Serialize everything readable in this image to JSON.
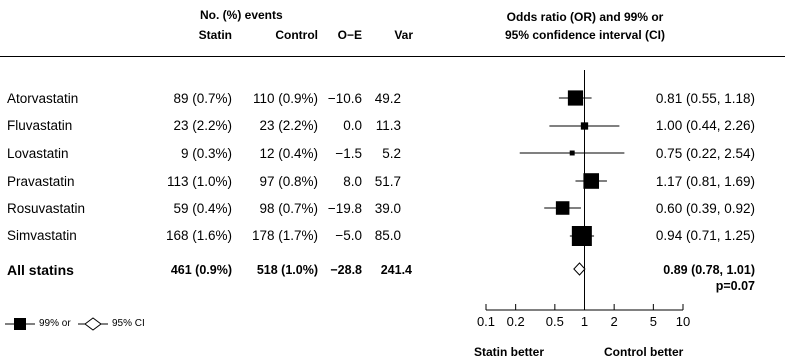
{
  "header": {
    "events_group": "No. (%) events",
    "col_statin": "Statin",
    "col_control": "Control",
    "col_oe": "O−E",
    "col_var": "Var",
    "or_title_line1": "Odds ratio (OR) and 99% or",
    "or_title_line2": "95% confidence interval (CI)"
  },
  "rows": [
    {
      "name": "Atorvastatin",
      "statin": "89 (0.7%)",
      "control": "110 (0.9%)",
      "oe": "−10.6",
      "var": "49.2",
      "ci_text": "0.81 (0.55, 1.18)"
    },
    {
      "name": "Fluvastatin",
      "statin": "23 (2.2%)",
      "control": "23 (2.2%)",
      "oe": "0.0",
      "var": "11.3",
      "ci_text": "1.00 (0.44, 2.26)"
    },
    {
      "name": "Lovastatin",
      "statin": "9 (0.3%)",
      "control": "12 (0.4%)",
      "oe": "−1.5",
      "var": "5.2",
      "ci_text": "0.75 (0.22, 2.54)"
    },
    {
      "name": "Pravastatin",
      "statin": "113 (1.0%)",
      "control": "97 (0.8%)",
      "oe": "8.0",
      "var": "51.7",
      "ci_text": "1.17 (0.81, 1.69)"
    },
    {
      "name": "Rosuvastatin",
      "statin": "59 (0.4%)",
      "control": "98 (0.7%)",
      "oe": "−19.8",
      "var": "39.0",
      "ci_text": "0.60 (0.39, 0.92)"
    },
    {
      "name": "Simvastatin",
      "statin": "168 (1.6%)",
      "control": "178 (1.7%)",
      "oe": "−5.0",
      "var": "85.0",
      "ci_text": "0.94 (0.71, 1.25)"
    }
  ],
  "total": {
    "name": "All statins",
    "statin": "461 (0.9%)",
    "control": "518 (1.0%)",
    "oe": "−28.8",
    "var": "241.4",
    "ci_text": "0.89 (0.78, 1.01)",
    "p_text": "p=0.07"
  },
  "legend": {
    "ci99": "99% or",
    "ci95": "95% CI"
  },
  "axis": {
    "left_label": "Statin better",
    "right_label": "Control better"
  },
  "chart_data": {
    "type": "forest",
    "scale": "log",
    "xlim": [
      0.1,
      10
    ],
    "xticks": [
      0.1,
      0.2,
      0.5,
      1,
      2,
      5,
      10
    ],
    "xtick_labels": [
      "0.1",
      "0.2",
      "0.5",
      "1",
      "2",
      "5",
      "10"
    ],
    "reference_line": 1,
    "studies": [
      {
        "name": "Atorvastatin",
        "or": 0.81,
        "lo": 0.55,
        "hi": 1.18,
        "weight": 49.2
      },
      {
        "name": "Fluvastatin",
        "or": 1.0,
        "lo": 0.44,
        "hi": 2.26,
        "weight": 11.3
      },
      {
        "name": "Lovastatin",
        "or": 0.75,
        "lo": 0.22,
        "hi": 2.54,
        "weight": 5.2
      },
      {
        "name": "Pravastatin",
        "or": 1.17,
        "lo": 0.81,
        "hi": 1.69,
        "weight": 51.7
      },
      {
        "name": "Rosuvastatin",
        "or": 0.6,
        "lo": 0.39,
        "hi": 0.92,
        "weight": 39.0
      },
      {
        "name": "Simvastatin",
        "or": 0.94,
        "lo": 0.71,
        "hi": 1.25,
        "weight": 85.0
      }
    ],
    "summary": {
      "name": "All statins",
      "or": 0.89,
      "lo": 0.78,
      "hi": 1.01
    }
  }
}
